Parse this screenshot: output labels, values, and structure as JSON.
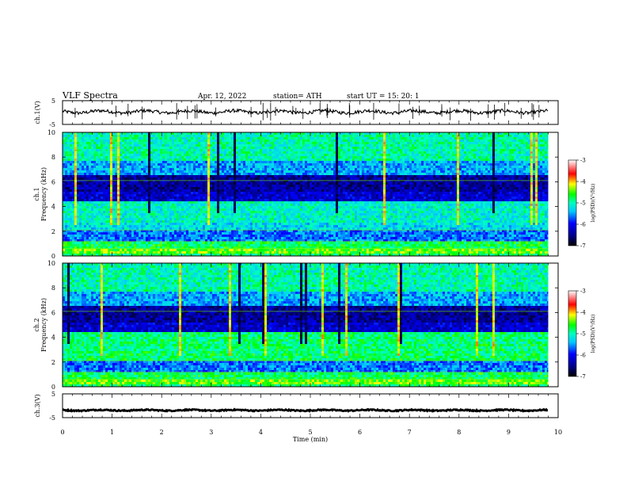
{
  "header": {
    "title": "VLF  Spectra",
    "date": "Apr. 12, 2022",
    "station": "station= ATH",
    "start_ut": "start  UT  =    15: 20: 1"
  },
  "chart_data": [
    {
      "type": "line",
      "id": "ch1-waveform",
      "ylabel": "ch.1(V)",
      "ylim": [
        -5,
        5
      ],
      "yticks": [
        "5",
        "-5"
      ],
      "xlim": [
        0,
        10
      ],
      "series": [
        {
          "x": [
            0,
            9.8
          ],
          "approx_level": 0.3
        }
      ]
    },
    {
      "type": "heatmap",
      "id": "ch1-spectrogram",
      "ylabel": "ch.1\nFrequency  (kHz)",
      "ylim": [
        0,
        10
      ],
      "yticks": [
        "0",
        "2",
        "4",
        "6",
        "8",
        "10"
      ],
      "xlim": [
        0,
        10
      ],
      "data_end_min": 9.8,
      "colorbar": {
        "label": "log(PSD)(V²/Hz)",
        "range": [
          -7,
          -3
        ],
        "ticks": [
          "-3",
          "-4",
          "-5",
          "-6",
          "-7"
        ]
      }
    },
    {
      "type": "heatmap",
      "id": "ch2-spectrogram",
      "ylabel": "ch.2\nFrequency  (kHz)",
      "ylim": [
        0,
        10
      ],
      "yticks": [
        "0",
        "2",
        "4",
        "6",
        "8",
        "10"
      ],
      "xlim": [
        0,
        10
      ],
      "data_end_min": 9.8,
      "colorbar": {
        "label": "log(PSD)(V²/Hz)",
        "range": [
          -7,
          -3
        ],
        "ticks": [
          "-3",
          "-4",
          "-5",
          "-6",
          "-7"
        ]
      }
    },
    {
      "type": "line",
      "id": "ch3-waveform",
      "ylabel": "ch.3(V)",
      "ylim": [
        -5,
        5
      ],
      "yticks": [
        "5",
        "-5"
      ],
      "xlim": [
        0,
        10
      ],
      "xlabel": "Time  (min)",
      "xticks": [
        "0",
        "1",
        "2",
        "3",
        "4",
        "5",
        "6",
        "7",
        "8",
        "9",
        "10"
      ],
      "series": [
        {
          "x": [
            0,
            9.8
          ],
          "approx_level": -1.9
        }
      ]
    }
  ]
}
